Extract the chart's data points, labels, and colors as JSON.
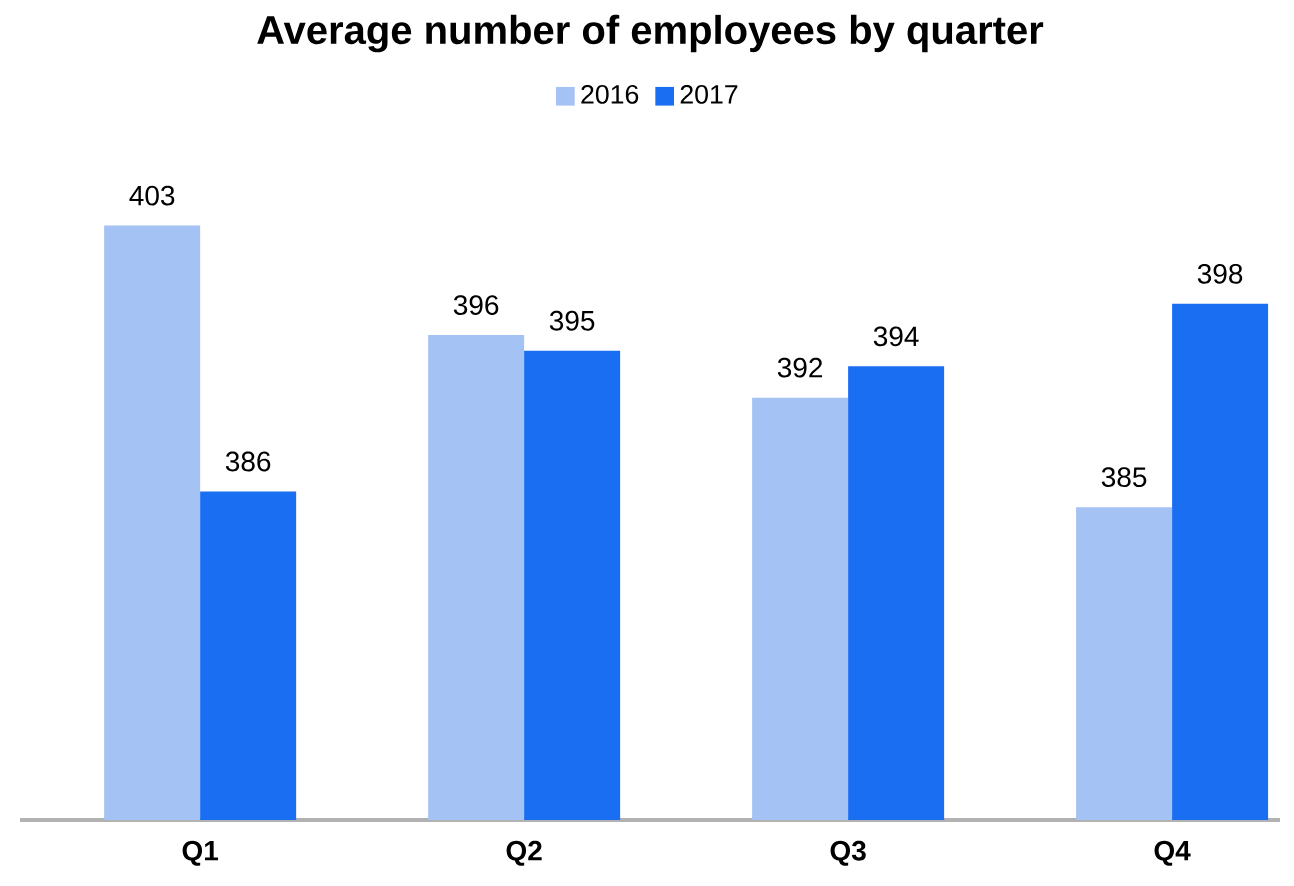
{
  "chart_data": {
    "type": "bar",
    "title": "Average number of employees by quarter",
    "categories": [
      "Q1",
      "Q2",
      "Q3",
      "Q4"
    ],
    "series": [
      {
        "name": "2016",
        "color": "#a4c2f4",
        "values": [
          403,
          396,
          392,
          385
        ]
      },
      {
        "name": "2017",
        "color": "#1a6ef2",
        "values": [
          386,
          395,
          394,
          398
        ]
      }
    ],
    "ylim": [
      365,
      403
    ],
    "tick_labels": "x",
    "data_labels": true,
    "legend": "top"
  }
}
